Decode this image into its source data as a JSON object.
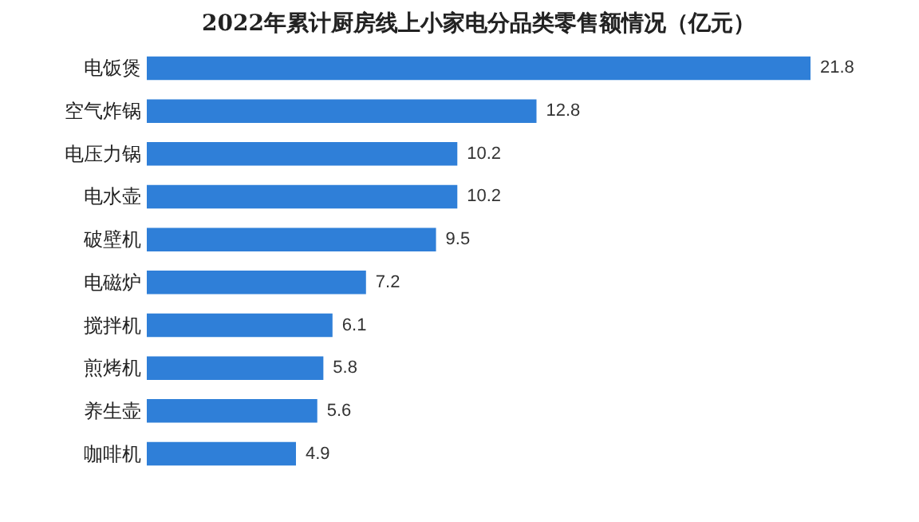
{
  "chart_data": {
    "type": "bar",
    "orientation": "horizontal",
    "title": "2022年累计厨房线上小家电分品类零售额情况（亿元）",
    "categories": [
      "电饭煲",
      "空气炸锅",
      "电压力锅",
      "电水壶",
      "破壁机",
      "电磁炉",
      "搅拌机",
      "煎烤机",
      "养生壶",
      "咖啡机"
    ],
    "values": [
      21.8,
      12.8,
      10.2,
      10.2,
      9.5,
      7.2,
      6.1,
      5.8,
      5.6,
      4.9
    ],
    "color": "#2f7fd8",
    "data_labels": true
  }
}
